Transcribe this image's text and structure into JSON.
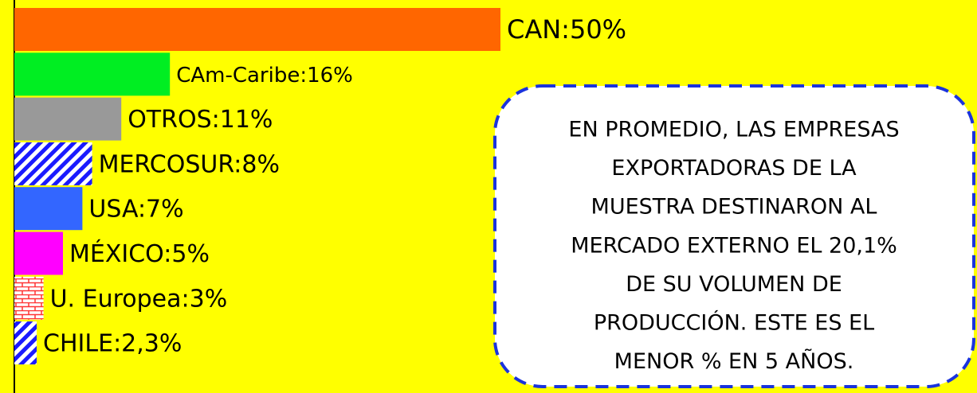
{
  "chart_data": {
    "type": "hbar",
    "value_labels": [
      "CAN:50%",
      "CAm-Caribe:16%",
      "OTROS:11%",
      "MERCOSUR:8%",
      "USA:7%",
      "MÉXICO:5%",
      "U. Europea:3%",
      "CHILE:2,3%"
    ],
    "values": [
      50,
      16,
      11,
      8,
      7,
      5,
      3,
      2.3
    ],
    "colors": [
      "#ff6600",
      "#00ee22",
      "#999999",
      "#1a1aff",
      "#3366ff",
      "#ff00ff",
      "#ff3333",
      "#1a1aff"
    ],
    "patterns": [
      "none",
      "none",
      "none",
      "diagonal",
      "none",
      "none",
      "brick",
      "diagonal"
    ],
    "xlim": [
      0,
      50
    ],
    "annotation": [
      "EN PROMEDIO, LAS EMPRESAS",
      "EXPORTADORAS DE LA",
      "MUESTRA DESTINARON AL",
      "MERCADO EXTERNO EL 20,1%",
      "DE SU VOLUMEN DE",
      "PRODUCCIÓN. ESTE ES EL",
      "MENOR % EN 5 AÑOS."
    ]
  }
}
